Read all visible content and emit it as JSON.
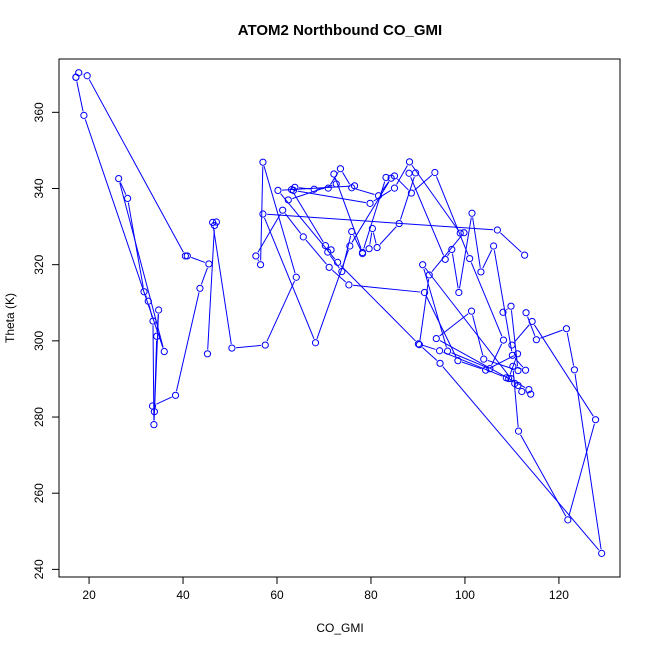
{
  "chart_data": {
    "type": "line",
    "title": "ATOM2 Northbound CO_GMI",
    "xlabel": "CO_GMI",
    "ylabel": "Theta (K)",
    "xlim": [
      13.6,
      133
    ],
    "ylim": [
      238,
      374
    ],
    "xticks": [
      20,
      40,
      60,
      80,
      100,
      120
    ],
    "yticks": [
      240,
      260,
      280,
      300,
      320,
      340,
      360
    ],
    "grid": false,
    "markers": "open-circle",
    "color": "#0000ff",
    "series": [
      {
        "x": [
          17.2,
          17.8,
          19.6,
          40.5,
          40.9,
          45.5,
          43.6,
          38.4,
          33.5,
          33.9,
          34.4,
          34.8,
          33.8,
          33.6,
          32.6,
          31.7,
          28.2,
          26.3,
          36.0,
          18.9,
          17.2
        ],
        "y": [
          369.2,
          370.4,
          369.6,
          322.3,
          322.3,
          320.2,
          313.8,
          285.7,
          282.9,
          281.4,
          301.2,
          308.1,
          278.0,
          305.2,
          310.4,
          312.9,
          337.4,
          342.6,
          297.2,
          359.2,
          369.2
        ]
      },
      {
        "x": [
          45.2,
          46.7,
          47.1,
          46.3,
          50.4,
          57.5,
          64.1,
          57.0,
          56.5,
          55.5,
          61.2,
          65.6,
          71.1,
          75.3,
          91.4,
          98.5,
          104.4,
          111.2,
          109.3,
          110.6,
          111.3,
          112.1,
          114.0,
          113.6,
          93.9,
          101.4,
          104.0,
          111.3,
          109.8,
          108.1
        ],
        "y": [
          296.6,
          330.3,
          331.2,
          331.1,
          298.1,
          298.9,
          316.7,
          346.9,
          320.0,
          322.3,
          334.3,
          327.3,
          319.3,
          314.7,
          312.7,
          294.8,
          292.3,
          296.6,
          290.1,
          288.8,
          288.3,
          286.7,
          286.0,
          287.2,
          300.6,
          307.8,
          295.2,
          292.2,
          309.1,
          307.5
        ]
      },
      {
        "x": [
          113.0,
          115.2,
          121.6,
          123.3,
          129.1,
          94.7,
          90.3,
          92.4,
          99.8,
          99.0,
          88.2,
          85.0,
          79.8,
          63.5,
          63.8,
          67.9,
          70.9,
          73.5,
          75.9,
          81.6,
          84.3,
          75.5,
          68.2,
          57.0,
          106.9,
          112.7
        ],
        "y": [
          307.4,
          300.3,
          303.2,
          292.4,
          244.2,
          294.1,
          299.0,
          317.3,
          328.4,
          328.3,
          347.0,
          340.1,
          336.1,
          339.5,
          340.3,
          339.8,
          340.1,
          345.2,
          340.2,
          338.1,
          342.7,
          324.9,
          299.5,
          333.3,
          329.1,
          322.5
        ]
      },
      {
        "x": [
          63.1,
          70.3,
          71.5,
          70.8,
          73.8,
          75.9,
          78.2,
          79.6,
          80.3,
          81.3,
          86.0,
          89.5,
          88.1,
          95.8,
          97.2,
          98.7,
          101.5,
          103.4,
          106.1,
          110.1,
          112.9,
          110.2,
          111.4,
          121.9,
          127.8,
          114.3,
          110.0
        ],
        "y": [
          339.7,
          325.0,
          323.9,
          323.3,
          318.2,
          328.7,
          322.9,
          324.2,
          329.5,
          324.5,
          330.8,
          344.1,
          344.0,
          321.4,
          324.0,
          312.7,
          333.5,
          318.1,
          324.9,
          296.2,
          292.3,
          293.3,
          276.3,
          253.0,
          279.3,
          305.1,
          298.9
        ]
      },
      {
        "x": [
          62.4,
          72.6,
          72.1,
          78.2,
          83.2,
          85.0,
          88.6,
          93.6,
          101.0,
          108.2,
          105.3,
          96.3,
          91.0,
          109.8,
          108.8,
          94.6,
          90.1,
          72.9,
          60.2,
          76.5
        ],
        "y": [
          337.0,
          341.2,
          343.8,
          323.2,
          342.9,
          343.3,
          338.8,
          344.2,
          321.6,
          300.2,
          292.7,
          297.3,
          320.0,
          290.1,
          290.3,
          297.4,
          299.2,
          320.6,
          339.5,
          340.7
        ]
      }
    ]
  }
}
